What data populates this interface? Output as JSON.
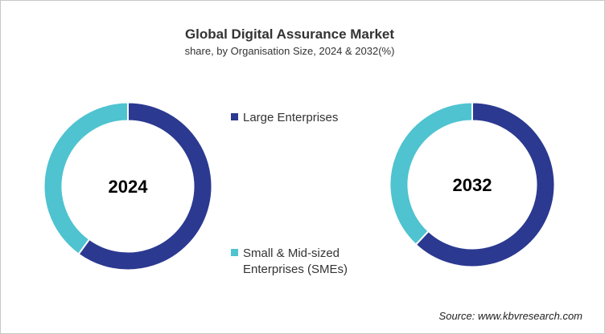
{
  "title": "Global Digital Assurance Market",
  "subtitle": "share, by Organisation Size, 2024 & 2032(%)",
  "source": "Source: www.kbvresearch.com",
  "chart_data": [
    {
      "type": "pie",
      "donut": true,
      "center_label": "2024",
      "categories": [
        "Large Enterprises",
        "Small & Mid-sized Enterprises (SMEs)"
      ],
      "values": [
        60,
        40
      ],
      "colors": [
        "#2b3990",
        "#4fc3d0"
      ]
    },
    {
      "type": "pie",
      "donut": true,
      "center_label": "2032",
      "categories": [
        "Large Enterprises",
        "Small & Mid-sized Enterprises (SMEs)"
      ],
      "values": [
        62,
        38
      ],
      "colors": [
        "#2b3990",
        "#4fc3d0"
      ]
    }
  ],
  "legend": {
    "placement": "center",
    "items": [
      {
        "label": "Large Enterprises",
        "color": "#2b3990"
      },
      {
        "label_line1": "Small & Mid-sized",
        "label_line2": "Enterprises (SMEs)",
        "color": "#4fc3d0"
      }
    ]
  }
}
